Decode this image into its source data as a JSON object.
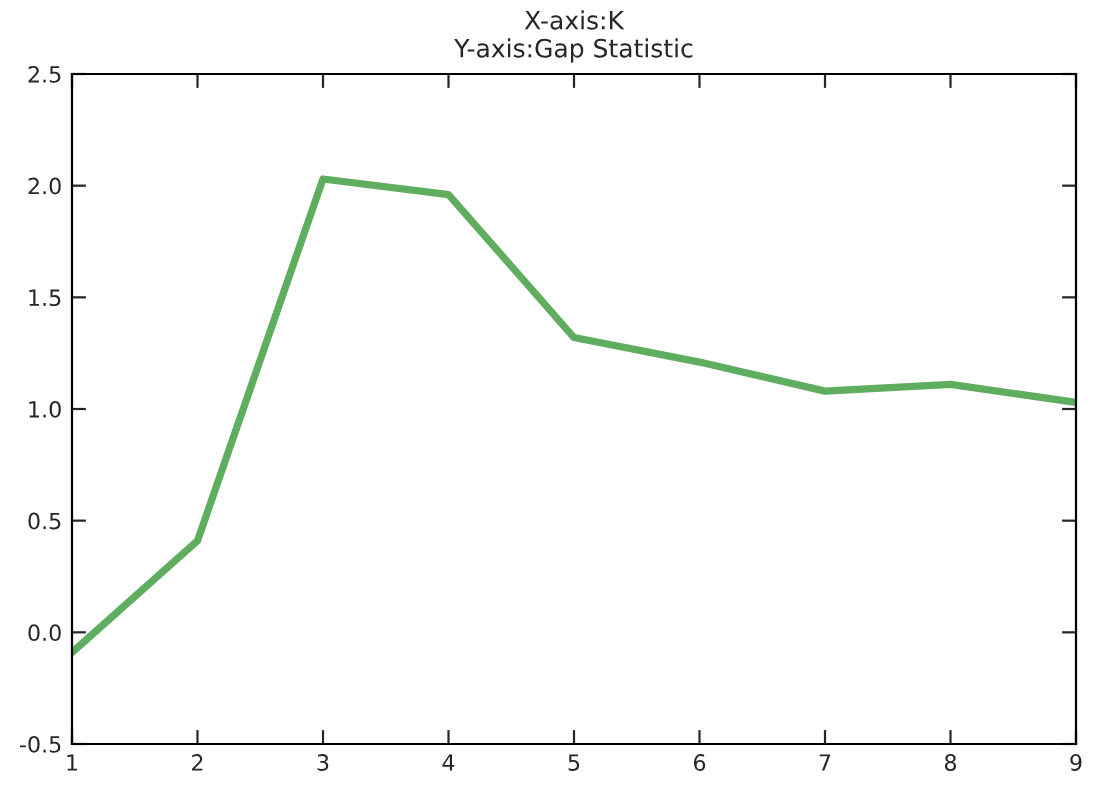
{
  "chart_data": {
    "type": "line",
    "title": "X-axis:K\nY-axis:Gap Statistic",
    "x": [
      1,
      2,
      3,
      4,
      5,
      6,
      7,
      8,
      9
    ],
    "series": [
      {
        "color": "#5fad5f",
        "values": [
          -0.09,
          0.41,
          2.03,
          1.96,
          1.32,
          1.21,
          1.08,
          1.11,
          1.03
        ]
      }
    ],
    "xlim": [
      1,
      9
    ],
    "xticks": [
      1,
      2,
      3,
      4,
      5,
      6,
      7,
      8,
      9
    ],
    "ylim": [
      -0.5,
      2.5
    ],
    "yticks": [
      -0.5,
      {
        "value": 0,
        "label": "0.0"
      },
      0.5,
      {
        "value": 1,
        "label": "1.0"
      },
      1.5,
      {
        "value": 2,
        "label": "2.0"
      },
      2.5
    ],
    "grid": false,
    "marker": "none",
    "line_style": "solid"
  }
}
